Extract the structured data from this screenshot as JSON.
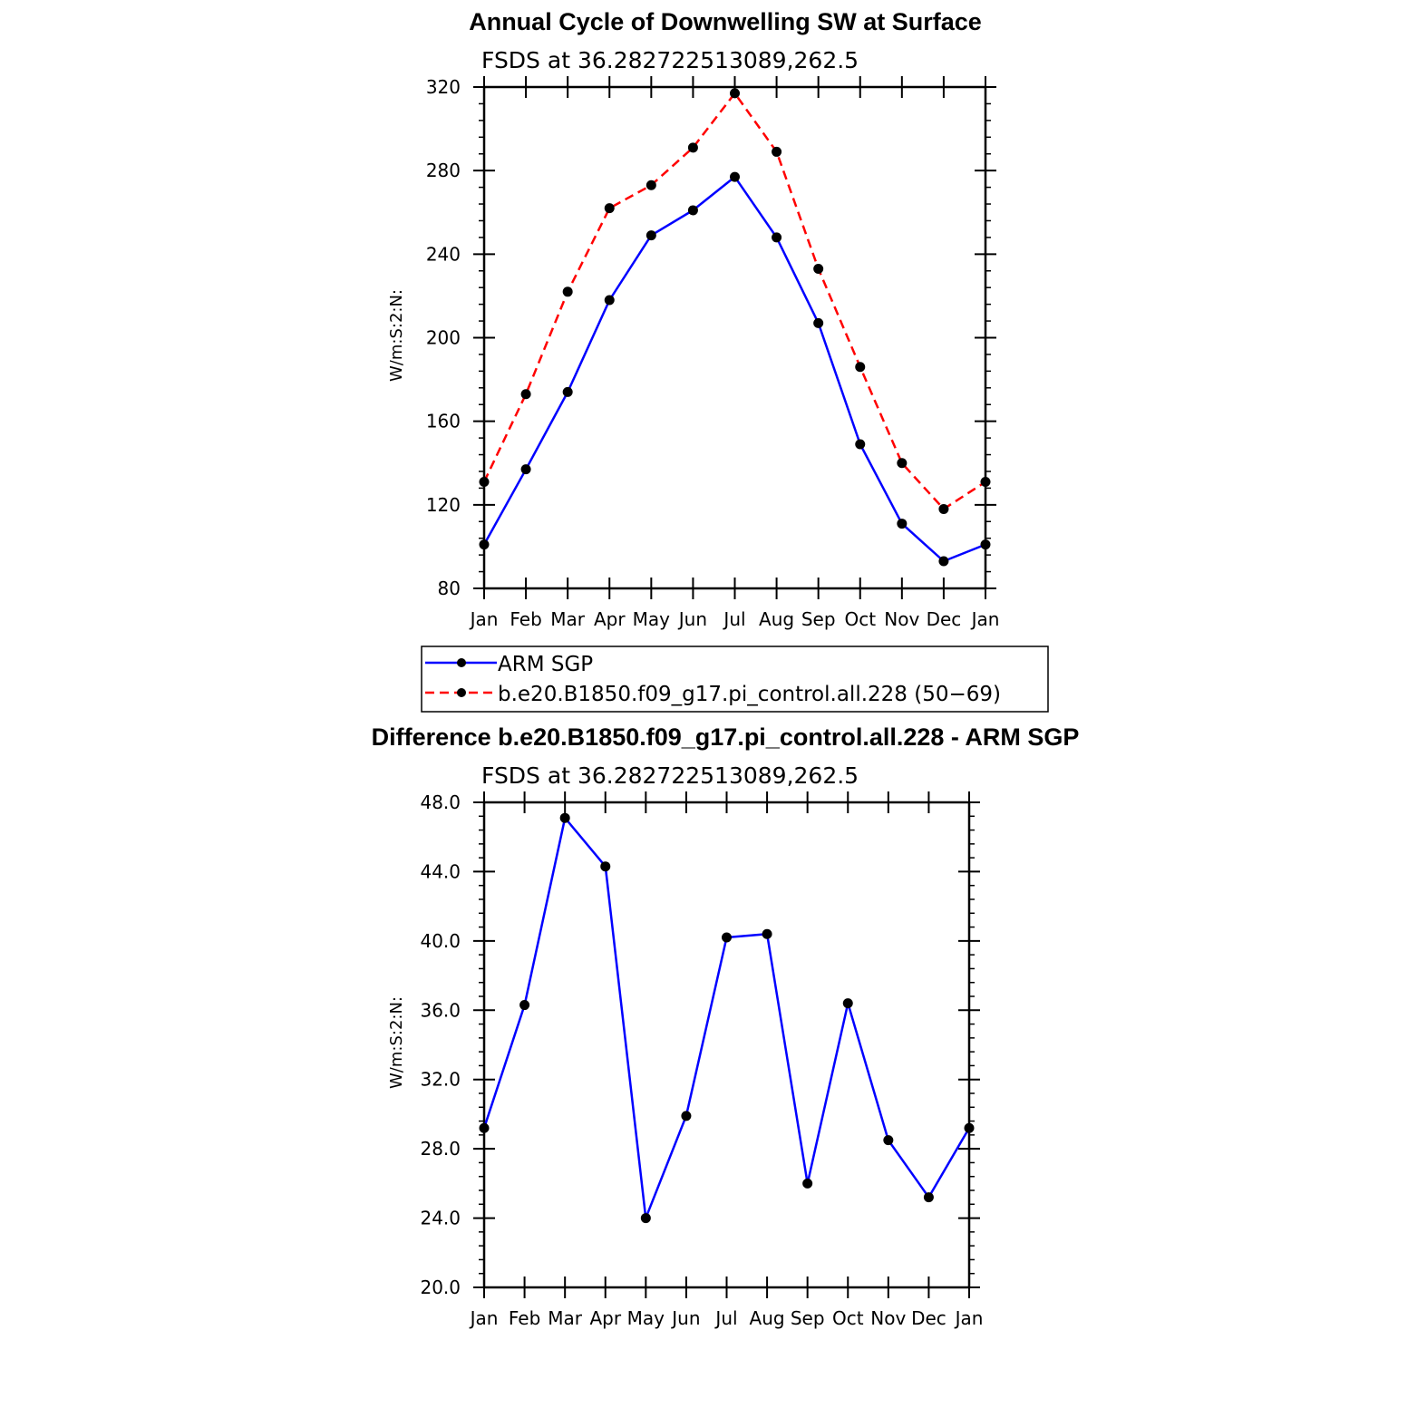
{
  "chart_data": [
    {
      "type": "line",
      "title": "Annual Cycle of Downwelling SW at Surface",
      "subtitle": "FSDS at 36.282722513089,262.5",
      "ylabel": "W/m:S:2:N:",
      "xlabel": "",
      "categories": [
        "Jan",
        "Feb",
        "Mar",
        "Apr",
        "May",
        "Jun",
        "Jul",
        "Aug",
        "Sep",
        "Oct",
        "Nov",
        "Dec",
        "Jan"
      ],
      "ylim": [
        80,
        320
      ],
      "yticks": [
        "80",
        "120",
        "160",
        "200",
        "240",
        "280",
        "320"
      ],
      "series": [
        {
          "name": "ARM SGP",
          "color": "#0000ff",
          "dash": "solid",
          "values": [
            101,
            137,
            174,
            218,
            249,
            261,
            277,
            248,
            207,
            149,
            111,
            93,
            101
          ]
        },
        {
          "name": "b.e20.B1850.f09_g17.pi_control.all.228 (50−69)",
          "color": "#ff0000",
          "dash": "dashed",
          "values": [
            131,
            173,
            222,
            262,
            273,
            291,
            317,
            289,
            233,
            186,
            140,
            118,
            131
          ]
        }
      ],
      "legend": "below"
    },
    {
      "type": "line",
      "title": "Difference b.e20.B1850.f09_g17.pi_control.all.228 - ARM SGP",
      "subtitle": "FSDS at 36.282722513089,262.5",
      "ylabel": "W/m:S:2:N:",
      "xlabel": "",
      "categories": [
        "Jan",
        "Feb",
        "Mar",
        "Apr",
        "May",
        "Jun",
        "Jul",
        "Aug",
        "Sep",
        "Oct",
        "Nov",
        "Dec",
        "Jan"
      ],
      "ylim": [
        20,
        48
      ],
      "yticks": [
        "20.0",
        "24.0",
        "28.0",
        "32.0",
        "36.0",
        "40.0",
        "44.0",
        "48.0"
      ],
      "series": [
        {
          "color": "#0000ff",
          "dash": "solid",
          "values": [
            29.2,
            36.3,
            47.1,
            44.3,
            24.0,
            29.9,
            40.2,
            40.4,
            26.0,
            36.4,
            28.5,
            25.2,
            29.2
          ]
        }
      ]
    }
  ]
}
